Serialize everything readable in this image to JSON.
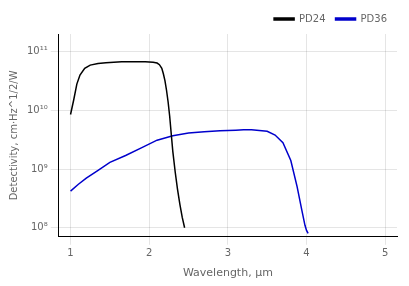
{
  "chart_data": {
    "type": "line",
    "xlabel": "Wavelength, μm",
    "ylabel": "Detectivity, cm·Hz^1/2/W",
    "xlim": [
      0.85,
      5.15
    ],
    "ylim": [
      70000000.0,
      200000000000.0
    ],
    "xticks": [
      1,
      2,
      3,
      4,
      5
    ],
    "yticks": [
      {
        "value": 100000000.0,
        "label": "10⁸"
      },
      {
        "value": 1000000000.0,
        "label": "10⁹"
      },
      {
        "value": 10000000000.0,
        "label": "10¹⁰"
      },
      {
        "value": 100000000000.0,
        "label": "10¹¹"
      }
    ],
    "log": "y",
    "grid": true,
    "legend": "upper right",
    "series": [
      {
        "name": "PD24",
        "color": "#000000",
        "x": [
          1.0,
          1.04,
          1.08,
          1.12,
          1.18,
          1.25,
          1.35,
          1.45,
          1.55,
          1.65,
          1.75,
          1.85,
          1.95,
          2.05,
          2.1,
          2.13,
          2.16,
          2.18,
          2.2,
          2.22,
          2.24,
          2.26,
          2.28,
          2.3,
          2.33,
          2.36,
          2.39,
          2.42,
          2.45
        ],
        "values": [
          8500000000.0,
          15000000000.0,
          28000000000.0,
          40000000000.0,
          52000000000.0,
          59000000000.0,
          63000000000.0,
          65000000000.0,
          66000000000.0,
          67000000000.0,
          67000000000.0,
          67000000000.0,
          67000000000.0,
          66000000000.0,
          64000000000.0,
          60000000000.0,
          52000000000.0,
          42000000000.0,
          32000000000.0,
          22000000000.0,
          14000000000.0,
          8000000000.0,
          4000000000.0,
          2000000000.0,
          900000000.0,
          450000000.0,
          250000000.0,
          150000000.0,
          100000000.0
        ]
      },
      {
        "name": "PD36",
        "color": "#0000cc",
        "x": [
          1.0,
          1.1,
          1.2,
          1.35,
          1.5,
          1.7,
          1.9,
          2.1,
          2.3,
          2.5,
          2.7,
          2.9,
          3.0,
          3.1,
          3.2,
          3.3,
          3.4,
          3.5,
          3.6,
          3.7,
          3.8,
          3.88,
          3.94,
          3.98,
          4.0,
          4.02
        ],
        "values": [
          420000000.0,
          550000000.0,
          700000000.0,
          950000000.0,
          1300000000.0,
          1700000000.0,
          2300000000.0,
          3100000000.0,
          3700000000.0,
          4100000000.0,
          4300000000.0,
          4500000000.0,
          4550000000.0,
          4600000000.0,
          4650000000.0,
          4650000000.0,
          4550000000.0,
          4400000000.0,
          3800000000.0,
          2800000000.0,
          1400000000.0,
          500000000.0,
          200000000.0,
          110000000.0,
          90000000.0,
          80000000.0
        ]
      }
    ]
  }
}
